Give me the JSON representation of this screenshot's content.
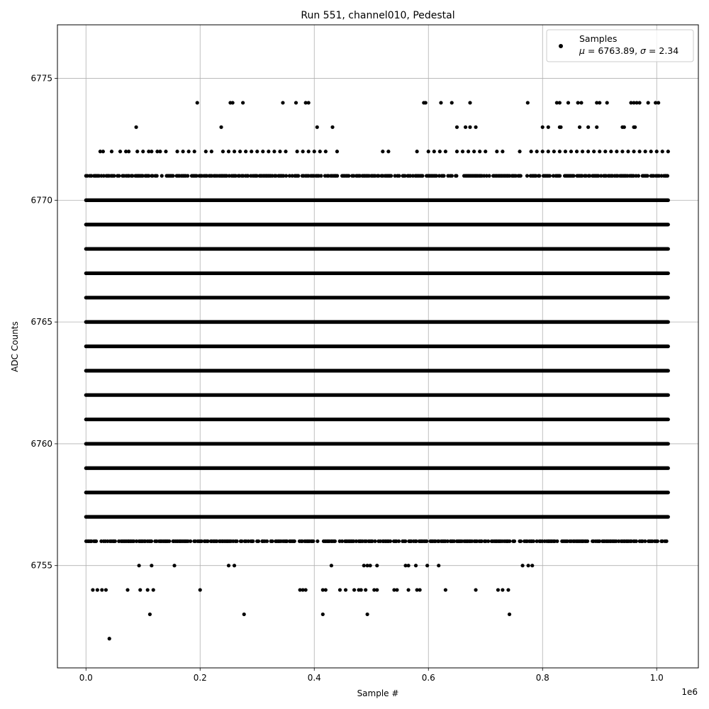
{
  "chart_data": {
    "type": "scatter",
    "title": "Run 551, channel010, Pedestal",
    "xlabel": "Sample #",
    "ylabel": "ADC Counts",
    "x_offset_text": "1e6",
    "xlim": [
      -0.05,
      1.073
    ],
    "ylim": [
      6750.8,
      6777.2
    ],
    "x_ticks": [
      0.0,
      0.2,
      0.4,
      0.6,
      0.8,
      1.0
    ],
    "x_tick_labels": [
      "0.0",
      "0.2",
      "0.4",
      "0.6",
      "0.8",
      "1.0"
    ],
    "y_ticks": [
      6755,
      6760,
      6765,
      6770,
      6775
    ],
    "y_tick_labels": [
      "6755",
      "6760",
      "6765",
      "6770",
      "6775"
    ],
    "grid": true,
    "legend_position": "top-right",
    "marker_color": "#000000",
    "series": [
      {
        "name": "Samples",
        "stats_label_prefix": "μ = 6763.89, σ = 2.34",
        "x_range": [
          0.0,
          1.02
        ],
        "dense_levels": [
          6757,
          6758,
          6759,
          6760,
          6761,
          6762,
          6763,
          6764,
          6765,
          6766,
          6767,
          6768,
          6769,
          6770
        ],
        "medium_levels": [
          6756,
          6771
        ],
        "sparse_points": {
          "6774": [
            0.195,
            0.253,
            0.257,
            0.275,
            0.345,
            0.368,
            0.385,
            0.39,
            0.592,
            0.595,
            0.622,
            0.641,
            0.673,
            0.774,
            0.825,
            0.83,
            0.845,
            0.862,
            0.868,
            0.895,
            0.9,
            0.913,
            0.955,
            0.96,
            0.965,
            0.97,
            0.985,
            0.998,
            1.003
          ],
          "6773": [
            0.088,
            0.237,
            0.405,
            0.432,
            0.65,
            0.665,
            0.673,
            0.683,
            0.8,
            0.81,
            0.83,
            0.832,
            0.865,
            0.88,
            0.895,
            0.94,
            0.943,
            0.96,
            0.962
          ],
          "6772": [
            0.025,
            0.03,
            0.045,
            0.06,
            0.07,
            0.075,
            0.09,
            0.1,
            0.11,
            0.115,
            0.125,
            0.13,
            0.14,
            0.16,
            0.17,
            0.18,
            0.19,
            0.21,
            0.22,
            0.24,
            0.25,
            0.26,
            0.27,
            0.28,
            0.29,
            0.3,
            0.31,
            0.32,
            0.33,
            0.34,
            0.35,
            0.37,
            0.38,
            0.39,
            0.4,
            0.41,
            0.42,
            0.44,
            0.52,
            0.53,
            0.58,
            0.6,
            0.61,
            0.62,
            0.63,
            0.65,
            0.66,
            0.67,
            0.68,
            0.69,
            0.7,
            0.72,
            0.73,
            0.76,
            0.78,
            0.79,
            0.8,
            0.81,
            0.82,
            0.83,
            0.84,
            0.85,
            0.86,
            0.87,
            0.88,
            0.89,
            0.9,
            0.91,
            0.92,
            0.93,
            0.94,
            0.95,
            0.96,
            0.97,
            0.98,
            0.99,
            1.0,
            1.01,
            1.02
          ],
          "6755": [
            0.093,
            0.115,
            0.155,
            0.25,
            0.26,
            0.43,
            0.487,
            0.493,
            0.498,
            0.51,
            0.56,
            0.565,
            0.578,
            0.598,
            0.618,
            0.765,
            0.775,
            0.782
          ],
          "6754": [
            0.012,
            0.02,
            0.028,
            0.035,
            0.073,
            0.095,
            0.108,
            0.118,
            0.2,
            0.375,
            0.38,
            0.385,
            0.415,
            0.42,
            0.445,
            0.455,
            0.47,
            0.478,
            0.482,
            0.49,
            0.505,
            0.51,
            0.54,
            0.545,
            0.565,
            0.58,
            0.585,
            0.63,
            0.683,
            0.722,
            0.73,
            0.74
          ],
          "6753": [
            0.112,
            0.277,
            0.415,
            0.493,
            0.742
          ],
          "6752": [
            0.041
          ]
        }
      }
    ]
  }
}
